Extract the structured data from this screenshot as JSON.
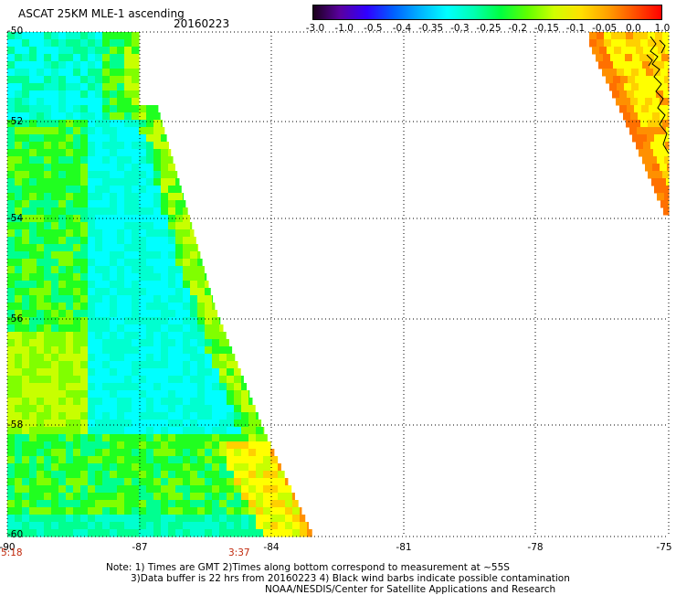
{
  "header": {
    "title": "ASCAT 25KM MLE-1 ascending",
    "date": "20160223"
  },
  "colorbar": {
    "labels": [
      "-3.0",
      "-1.0",
      "-0.5",
      "-0.4",
      "-0.35",
      "-0.3",
      "-0.25",
      "-0.2",
      "-0.15",
      "-0.1",
      "-0.05",
      "0.0",
      "1.0"
    ],
    "colors": [
      "#1a001a",
      "#5a00a0",
      "#3000ff",
      "#0060ff",
      "#00b4ff",
      "#00ffff",
      "#00ffb0",
      "#00ff40",
      "#60ff00",
      "#d0ff00",
      "#ffe000",
      "#ffa000",
      "#ff5000",
      "#ff0000"
    ]
  },
  "map": {
    "lat_labels": [
      "-50",
      "-52",
      "-54",
      "-56",
      "-58",
      "-60"
    ],
    "lon_labels": [
      "-90",
      "-87",
      "-84",
      "-81",
      "-78",
      "-75"
    ],
    "time_labels": [
      "5:18",
      "3:37"
    ],
    "time_color": "#c0280b",
    "lat_range": [
      -60,
      -50
    ],
    "lon_range": [
      -90,
      -75
    ],
    "palette": {
      "cyan": "#00ffff",
      "aqua": "#00ffd0",
      "mint": "#00ff90",
      "green": "#20ff20",
      "lime": "#80ff00",
      "yellowgreen": "#c8ff00",
      "yellow": "#ffff00",
      "gold": "#ffd000",
      "orange": "#ff9000",
      "darkorange": "#ff7000"
    }
  },
  "footer": {
    "line1": "Note: 1) Times are GMT 2)Times along bottom correspond to measurement at ~55S",
    "line2": "3)Data buffer is 22 hrs from 20160223 4) Black wind barbs indicate possible contamination",
    "line3": "NOAA/NESDIS/Center for Satellite Applications and Research"
  }
}
